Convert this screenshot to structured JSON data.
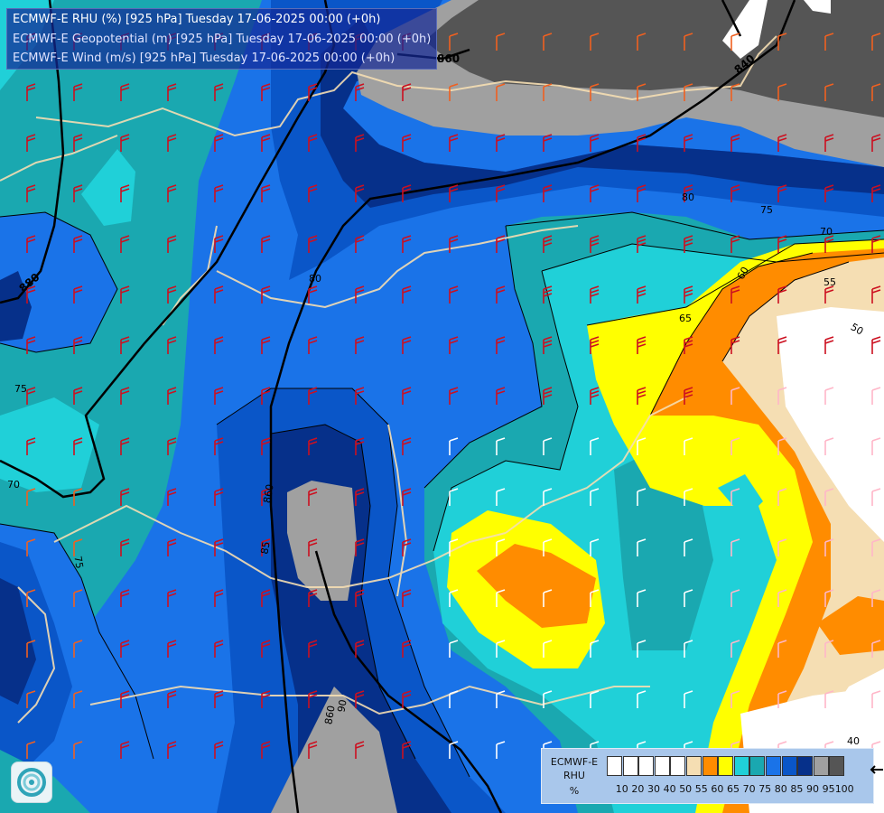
{
  "header": {
    "line1": "ECMWF-E RHU (%) [925 hPa] Tuesday 17-06-2025 00:00 (+0h)",
    "line2": "ECMWF-E Geopotential (m) [925 hPa] Tuesday 17-06-2025 00:00 (+0h)",
    "line3": "ECMWF-E Wind (m/s) [925 hPa] Tuesday 17-06-2025 00:00 (+0h)"
  },
  "legend": {
    "title1": "ECMWF-E",
    "title2": "RHU",
    "unit": "%",
    "ticks": [
      "10",
      "20",
      "30",
      "40",
      "50",
      "55",
      "60",
      "65",
      "70",
      "75",
      "80",
      "85",
      "90",
      "95",
      "100"
    ],
    "colors": [
      "#ffffff",
      "#ffffff",
      "#ffffff",
      "#ffffff",
      "#ffffff",
      "#f5deb3",
      "#ff8c00",
      "#ffff00",
      "#20d0d8",
      "#1aa8b0",
      "#1a73e8",
      "#0a56c8",
      "#06308a",
      "#a0a0a0",
      "#555555"
    ]
  },
  "geopotential_labels": [
    "860",
    "840",
    "880",
    "860",
    "860"
  ],
  "rhu_labels": [
    "80",
    "75",
    "70",
    "55",
    "50",
    "60",
    "65",
    "80",
    "75",
    "70",
    "75",
    "85",
    "90",
    "40"
  ],
  "colors": {
    "rhu_100": "#555555",
    "rhu_95": "#a0a0a0",
    "rhu_90": "#06308a",
    "rhu_85": "#0a56c8",
    "rhu_80": "#1a73e8",
    "rhu_75": "#1aa8b0",
    "rhu_70": "#20d0d8",
    "rhu_65": "#ffff00",
    "rhu_60": "#ff8c00",
    "rhu_55": "#f5deb3",
    "rhu_50": "#ffffff",
    "wind_strong": "#cc1020",
    "wind_medium": "#f06020",
    "wind_light": "#ffffff",
    "wind_pink": "#ffb6c8",
    "border": "#f5deb3",
    "geopotential_isoline": "#000000"
  }
}
